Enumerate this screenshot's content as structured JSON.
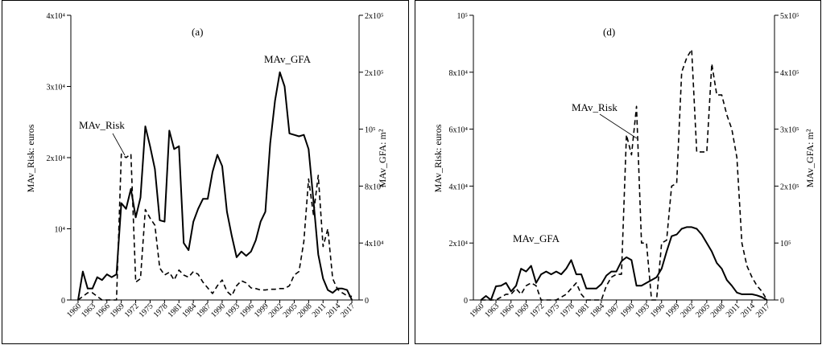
{
  "chart_data": [
    {
      "type": "line",
      "title": "(a)",
      "xlabel": "",
      "ylabel": "MAv_Risk: euros",
      "y2label": "MAv_GFA: m²",
      "xlim": [
        1958.5,
        2018.5
      ],
      "ylim": [
        0,
        40000
      ],
      "y2lim": [
        0,
        200000
      ],
      "grid": false,
      "x_tick_labels": [
        "1960",
        "1963",
        "1966",
        "1969",
        "1972",
        "1975",
        "1978",
        "1981",
        "1984",
        "1987",
        "1990",
        "1993",
        "1996",
        "1999",
        "2002",
        "2005",
        "2008",
        "2011",
        "2014",
        "2017"
      ],
      "y_tick_labels": [
        "0",
        "10⁴",
        "2x10⁴",
        "3x10⁴",
        "4x10⁴"
      ],
      "y2_tick_labels": [
        "0",
        "4x10⁴",
        "8x10⁴",
        "10⁵",
        "2x10⁵",
        "2x10⁵"
      ],
      "series": [
        {
          "name": "MAv_GFA",
          "style": "solid",
          "axis": "right",
          "x": [
            1960,
            1961,
            1962,
            1963,
            1964,
            1965,
            1966,
            1967,
            1968,
            1969,
            1970,
            1971,
            1972,
            1973,
            1974,
            1975,
            1976,
            1977,
            1978,
            1979,
            1980,
            1981,
            1982,
            1983,
            1984,
            1985,
            1986,
            1987,
            1988,
            1989,
            1990,
            1991,
            1992,
            1993,
            1994,
            1995,
            1996,
            1997,
            1998,
            1999,
            2000,
            2001,
            2002,
            2003,
            2004,
            2005,
            2006,
            2007,
            2008,
            2009,
            2010,
            2011,
            2012,
            2013,
            2014,
            2015,
            2016,
            2017
          ],
          "values": [
            0,
            20000,
            8000,
            8000,
            16000,
            14000,
            18000,
            16000,
            18000,
            68000,
            64000,
            78000,
            58000,
            72000,
            122000,
            108000,
            92000,
            56000,
            55000,
            119000,
            106000,
            108000,
            40000,
            35000,
            55000,
            64000,
            71000,
            71000,
            90000,
            102000,
            94000,
            62000,
            45000,
            30000,
            34000,
            31000,
            34000,
            42000,
            55000,
            62000,
            110000,
            140000,
            160000,
            150000,
            117000,
            116000,
            115000,
            116000,
            106000,
            70000,
            32000,
            15000,
            7000,
            5000,
            8000,
            8000,
            7000,
            0
          ]
        },
        {
          "name": "MAv_Risk",
          "style": "dashed",
          "axis": "left",
          "x": [
            1960,
            1961,
            1962,
            1963,
            1964,
            1965,
            1966,
            1967,
            1968,
            1969,
            1970,
            1971,
            1972,
            1973,
            1974,
            1975,
            1976,
            1977,
            1978,
            1979,
            1980,
            1981,
            1982,
            1983,
            1984,
            1985,
            1986,
            1987,
            1988,
            1989,
            1990,
            1991,
            1992,
            1993,
            1994,
            1995,
            1996,
            1997,
            1998,
            1999,
            2000,
            2001,
            2002,
            2003,
            2004,
            2005,
            2006,
            2007,
            2008,
            2009,
            2010,
            2011,
            2012,
            2013,
            2014,
            2015,
            2016,
            2017
          ],
          "values": [
            0,
            500,
            1000,
            1000,
            500,
            0,
            0,
            0,
            0,
            20500,
            20000,
            20500,
            2500,
            3000,
            12700,
            11500,
            10500,
            4500,
            3500,
            3900,
            2800,
            4200,
            3500,
            3200,
            4000,
            3600,
            2500,
            1700,
            900,
            2000,
            2800,
            1200,
            600,
            2000,
            2700,
            2400,
            1700,
            1600,
            1400,
            1400,
            1500,
            1500,
            1600,
            1600,
            2000,
            3500,
            4000,
            8200,
            17000,
            12000,
            17500,
            7500,
            10000,
            3000,
            1500,
            1000,
            600,
            500
          ]
        }
      ],
      "annotations": [
        "MAv_GFA",
        "MAv_Risk"
      ]
    },
    {
      "type": "line",
      "title": "(d)",
      "xlabel": "",
      "ylabel": "MAv_Risk: euros",
      "y2label": "MAv_GFA: m²",
      "xlim": [
        1958.5,
        2018.5
      ],
      "ylim": [
        0,
        100000
      ],
      "y2lim": [
        0,
        500000
      ],
      "grid": false,
      "x_tick_labels": [
        "1960",
        "1963",
        "1966",
        "1969",
        "1972",
        "1975",
        "1978",
        "1981",
        "1984",
        "1987",
        "1990",
        "1993",
        "1996",
        "1999",
        "2002",
        "2005",
        "2008",
        "2011",
        "2014",
        "2017"
      ],
      "y_tick_labels": [
        "0",
        "2x10⁴",
        "4x10⁴",
        "6x10⁴",
        "8x10⁴",
        "10⁵"
      ],
      "y2_tick_labels": [
        "0",
        "10⁵",
        "2x10⁵",
        "3x10⁵",
        "4x10⁵",
        "5x10⁵"
      ],
      "series": [
        {
          "name": "MAv_Risk",
          "style": "dashed",
          "axis": "left",
          "x": [
            1960,
            1961,
            1962,
            1963,
            1964,
            1965,
            1966,
            1967,
            1968,
            1969,
            1970,
            1971,
            1972,
            1973,
            1974,
            1975,
            1976,
            1977,
            1978,
            1979,
            1980,
            1981,
            1982,
            1983,
            1984,
            1985,
            1986,
            1987,
            1988,
            1989,
            1990,
            1991,
            1992,
            1993,
            1994,
            1995,
            1996,
            1997,
            1998,
            1999,
            2000,
            2001,
            2002,
            2003,
            2004,
            2005,
            2006,
            2007,
            2008,
            2009,
            2010,
            2011,
            2012,
            2013,
            2014,
            2015,
            2016,
            2017
          ],
          "values": [
            0,
            0,
            0,
            0,
            1000,
            2000,
            2000,
            4000,
            2000,
            5000,
            6000,
            5000,
            0,
            0,
            0,
            0,
            1000,
            2000,
            4000,
            6000,
            2000,
            0,
            0,
            0,
            0,
            5000,
            8000,
            9000,
            9000,
            58000,
            51000,
            68000,
            20000,
            20000,
            0,
            0,
            20000,
            21000,
            40000,
            41000,
            80000,
            85000,
            88000,
            52000,
            52000,
            52000,
            83000,
            72000,
            72000,
            65000,
            60000,
            50000,
            20000,
            12000,
            8000,
            5000,
            3000,
            0
          ]
        },
        {
          "name": "MAv_GFA",
          "style": "solid",
          "axis": "right",
          "x": [
            1960,
            1961,
            1962,
            1963,
            1964,
            1965,
            1966,
            1967,
            1968,
            1969,
            1970,
            1971,
            1972,
            1973,
            1974,
            1975,
            1976,
            1977,
            1978,
            1979,
            1980,
            1981,
            1982,
            1983,
            1984,
            1985,
            1986,
            1987,
            1988,
            1989,
            1990,
            1991,
            1992,
            1993,
            1994,
            1995,
            1996,
            1997,
            1998,
            1999,
            2000,
            2001,
            2002,
            2003,
            2004,
            2005,
            2006,
            2007,
            2008,
            2009,
            2010,
            2011,
            2012,
            2013,
            2014,
            2015,
            2016,
            2017
          ],
          "values": [
            0,
            7000,
            0,
            24000,
            25000,
            30000,
            15000,
            25000,
            55000,
            50000,
            60000,
            30000,
            45000,
            50000,
            45000,
            50000,
            45000,
            55000,
            70000,
            45000,
            45000,
            20000,
            20000,
            20000,
            28000,
            43000,
            50000,
            50000,
            68000,
            75000,
            70000,
            25000,
            25000,
            30000,
            35000,
            40000,
            55000,
            85000,
            112000,
            115000,
            125000,
            128000,
            128000,
            125000,
            115000,
            100000,
            85000,
            65000,
            55000,
            35000,
            25000,
            13000,
            10000,
            10000,
            10000,
            8000,
            5000,
            0
          ]
        }
      ],
      "annotations": [
        "MAv_Risk",
        "MAv_GFA"
      ]
    }
  ]
}
